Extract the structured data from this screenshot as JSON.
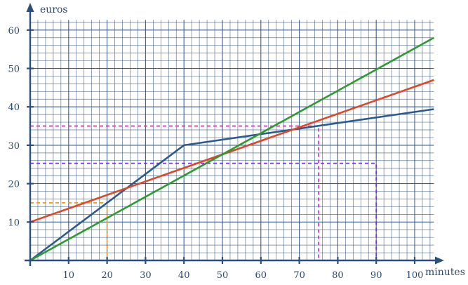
{
  "chart_data": {
    "type": "line",
    "xlabel": "minutes",
    "ylabel": "euros",
    "xlim": [
      0,
      105
    ],
    "ylim": [
      0,
      63
    ],
    "x_ticks": [
      "10",
      "20",
      "30",
      "40",
      "50",
      "60",
      "70",
      "80",
      "90",
      "100"
    ],
    "y_ticks": [
      "10",
      "20",
      "30",
      "40",
      "50",
      "60"
    ],
    "grid": true,
    "axis_color": "#2d4f7c",
    "grid_color": "#2d4f7c",
    "series": [
      {
        "color": "#2c5a8c",
        "points": [
          [
            0,
            0
          ],
          [
            40,
            30
          ],
          [
            105,
            39.4
          ]
        ]
      },
      {
        "color": "#e0462a",
        "points": [
          [
            0,
            10
          ],
          [
            105,
            47
          ]
        ]
      },
      {
        "color": "#2e9a30",
        "points": [
          [
            0,
            0
          ],
          [
            105,
            58
          ]
        ]
      }
    ],
    "guides": [
      {
        "color": "#f0a020",
        "x": 20,
        "y": 15
      },
      {
        "color": "#d63cc8",
        "x": 75,
        "y": 35
      },
      {
        "color": "#7a30e0",
        "x": 90,
        "y": 25.3
      }
    ]
  }
}
